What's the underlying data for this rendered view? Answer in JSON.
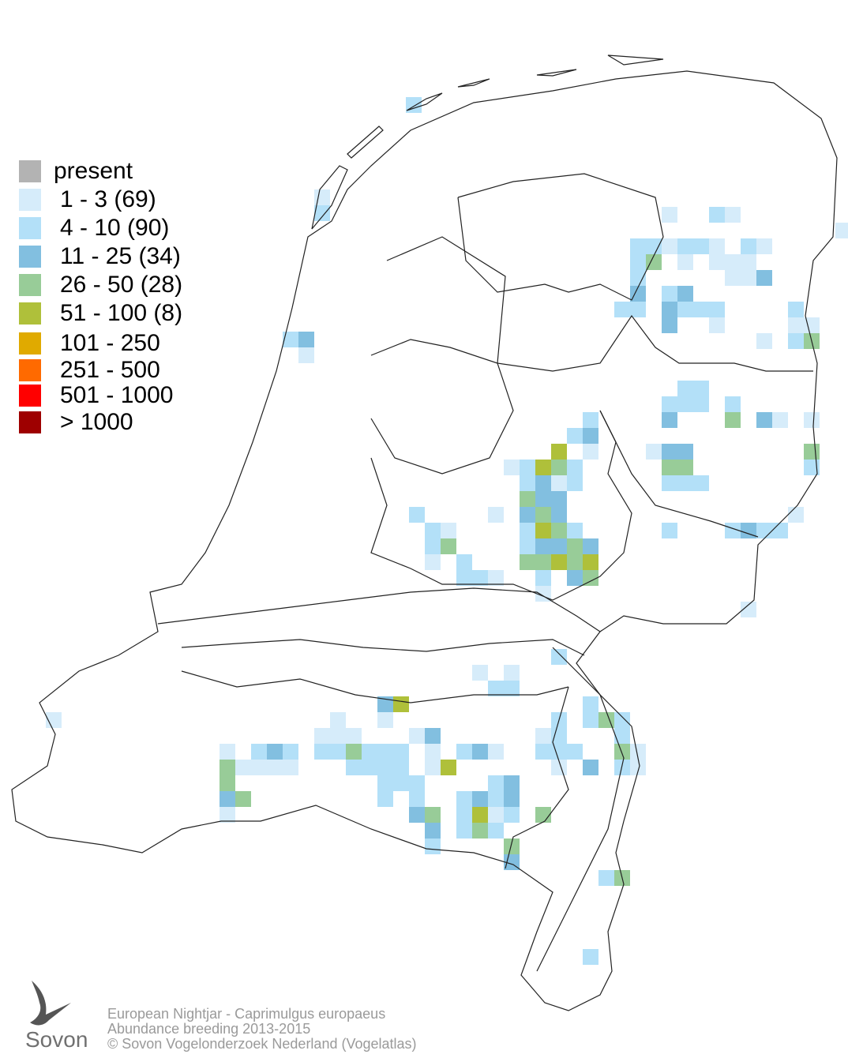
{
  "legend": {
    "items": [
      {
        "label": "present",
        "color": "#b3b3b3"
      },
      {
        "label": "1 - 3 (69)",
        "color": "#d6ecfa"
      },
      {
        "label": "4 - 10 (90)",
        "color": "#b3e0f8"
      },
      {
        "label": "11 - 25 (34)",
        "color": "#82bfe0"
      },
      {
        "label": "26 - 50 (28)",
        "color": "#98cc98"
      },
      {
        "label": "51 - 100 (8)",
        "color": "#afc03a"
      },
      {
        "label": "101 - 250",
        "color": "#e0aa00"
      },
      {
        "label": "251 - 500",
        "color": "#ff6a00"
      },
      {
        "label": "501 - 1000",
        "color": "#ff0000"
      },
      {
        "label": "> 1000",
        "color": "#9e0000"
      }
    ]
  },
  "footer": {
    "lines": [
      "European Nightjar - Caprimulgus europaeus",
      "Abundance breeding 2013-2015",
      "© Sovon Vogelonderzoek Nederland (Vogelatlas)"
    ]
  },
  "logo": {
    "text": "Sovon"
  }
}
